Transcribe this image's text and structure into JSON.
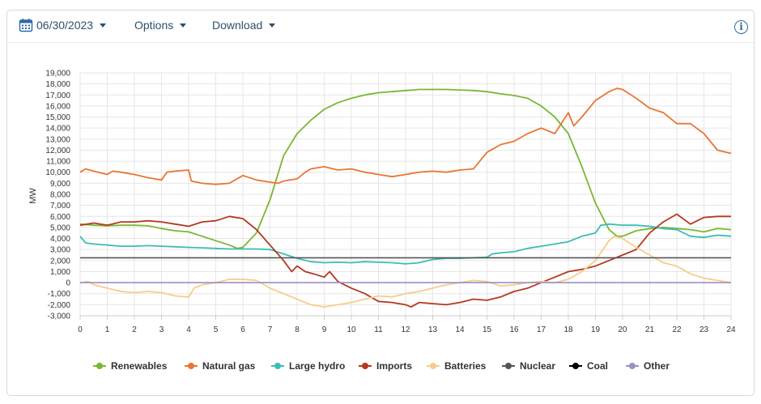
{
  "toolbar": {
    "date": "06/30/2023",
    "options_label": "Options",
    "download_label": "Download",
    "info_label": "i"
  },
  "chart_data": {
    "type": "line",
    "title": "",
    "xlabel": "",
    "ylabel": "MW",
    "xlim": [
      0,
      24
    ],
    "ylim": [
      -3000,
      19000
    ],
    "x_ticks": [
      0,
      1,
      2,
      3,
      4,
      5,
      6,
      7,
      8,
      9,
      10,
      11,
      12,
      13,
      14,
      15,
      16,
      17,
      18,
      19,
      20,
      21,
      22,
      23,
      24
    ],
    "y_ticks": [
      -3000,
      -2000,
      -1000,
      0,
      1000,
      2000,
      3000,
      4000,
      5000,
      6000,
      7000,
      8000,
      9000,
      10000,
      11000,
      12000,
      13000,
      14000,
      15000,
      16000,
      17000,
      18000,
      19000
    ],
    "y_tick_labels": [
      "-3,000",
      "-2,000",
      "-1,000",
      "0",
      "1,000",
      "2,000",
      "3,000",
      "4,000",
      "5,000",
      "6,000",
      "7,000",
      "8,000",
      "9,000",
      "10,000",
      "11,000",
      "12,000",
      "13,000",
      "14,000",
      "15,000",
      "16,000",
      "17,000",
      "18,000",
      "19,000"
    ],
    "grid": true,
    "legend_position": "bottom",
    "series": [
      {
        "name": "Renewables",
        "color": "#7ab733",
        "x": [
          0,
          0.5,
          1,
          1.5,
          2,
          2.5,
          3,
          3.5,
          4,
          4.5,
          5,
          5.5,
          5.8,
          6,
          6.5,
          7,
          7.5,
          8,
          8.5,
          9,
          9.5,
          10,
          10.5,
          11,
          11.5,
          12,
          12.5,
          13,
          13.5,
          14,
          14.5,
          15,
          15.5,
          16,
          16.5,
          17,
          17.5,
          18,
          18.5,
          19,
          19.5,
          19.8,
          20,
          20.5,
          21,
          21.5,
          22,
          22.5,
          23,
          23.5,
          24
        ],
        "values": [
          5300,
          5200,
          5150,
          5200,
          5200,
          5150,
          4900,
          4700,
          4600,
          4200,
          3800,
          3400,
          3100,
          3200,
          4500,
          7500,
          11500,
          13500,
          14700,
          15700,
          16300,
          16700,
          17000,
          17200,
          17300,
          17400,
          17500,
          17500,
          17500,
          17450,
          17400,
          17300,
          17100,
          16950,
          16700,
          16000,
          15000,
          13500,
          10500,
          7200,
          4800,
          4200,
          4200,
          4700,
          4900,
          5000,
          4900,
          4800,
          4600,
          4900,
          4800
        ]
      },
      {
        "name": "Natural gas",
        "color": "#e87632",
        "x": [
          0,
          0.2,
          0.5,
          1,
          1.2,
          1.5,
          2,
          2.5,
          3,
          3.2,
          3.5,
          4,
          4.1,
          4.5,
          5,
          5.5,
          6,
          6.5,
          7,
          7.3,
          7.5,
          8,
          8.3,
          8.5,
          9,
          9.5,
          10,
          10.5,
          11,
          11.5,
          12,
          12.5,
          13,
          13.5,
          14,
          14.5,
          15,
          15.5,
          16,
          16.5,
          17,
          17.5,
          18,
          18.2,
          18.5,
          19,
          19.5,
          19.8,
          20,
          20.5,
          21,
          21.5,
          22,
          22.5,
          23,
          23.5,
          24
        ],
        "values": [
          10000,
          10300,
          10100,
          9800,
          10100,
          10000,
          9800,
          9500,
          9300,
          10000,
          10100,
          10200,
          9200,
          9000,
          8900,
          9000,
          9700,
          9300,
          9100,
          9000,
          9200,
          9400,
          10000,
          10300,
          10500,
          10200,
          10300,
          10000,
          9800,
          9600,
          9800,
          10000,
          10100,
          10000,
          10200,
          10300,
          11800,
          12500,
          12800,
          13500,
          14000,
          13500,
          15400,
          14200,
          15000,
          16500,
          17300,
          17600,
          17500,
          16700,
          15800,
          15400,
          14400,
          14400,
          13500,
          12000,
          11700
        ]
      },
      {
        "name": "Large hydro",
        "color": "#3dbcb5",
        "x": [
          0,
          0.2,
          0.5,
          1,
          1.5,
          2,
          2.5,
          3,
          3.5,
          4,
          4.5,
          5,
          5.5,
          6,
          6.5,
          7,
          7.5,
          8,
          8.5,
          9,
          9.5,
          10,
          10.5,
          11,
          11.5,
          12,
          12.5,
          13,
          13.5,
          14,
          14.5,
          15,
          15.2,
          15.5,
          16,
          16.5,
          17,
          17.5,
          18,
          18.5,
          19,
          19.2,
          19.5,
          20,
          20.5,
          21,
          21.5,
          22,
          22.5,
          23,
          23.5,
          24
        ],
        "values": [
          4200,
          3600,
          3500,
          3400,
          3300,
          3300,
          3350,
          3300,
          3250,
          3200,
          3150,
          3100,
          3050,
          3050,
          3050,
          3000,
          2600,
          2200,
          1900,
          1800,
          1850,
          1800,
          1900,
          1850,
          1800,
          1700,
          1800,
          2100,
          2200,
          2200,
          2250,
          2300,
          2600,
          2700,
          2800,
          3100,
          3300,
          3500,
          3700,
          4200,
          4500,
          5200,
          5300,
          5200,
          5200,
          5100,
          4900,
          4800,
          4200,
          4100,
          4300,
          4200
        ]
      },
      {
        "name": "Imports",
        "color": "#b5381f",
        "x": [
          0,
          0.5,
          1,
          1.5,
          2,
          2.5,
          3,
          3.5,
          4,
          4.5,
          5,
          5.5,
          6,
          6.5,
          7,
          7.5,
          7.8,
          8,
          8.3,
          8.6,
          9,
          9.2,
          9.5,
          10,
          10.5,
          11,
          11.5,
          12,
          12.2,
          12.5,
          13,
          13.5,
          14,
          14.5,
          15,
          15.5,
          16,
          16.5,
          17,
          17.5,
          18,
          18.5,
          19,
          19.5,
          20,
          20.5,
          21,
          21.5,
          22,
          22.5,
          23,
          23.5,
          24
        ],
        "values": [
          5200,
          5400,
          5200,
          5500,
          5500,
          5600,
          5500,
          5300,
          5100,
          5500,
          5600,
          6000,
          5800,
          4800,
          3400,
          2000,
          1000,
          1500,
          1000,
          800,
          500,
          1000,
          100,
          -500,
          -1000,
          -1700,
          -1800,
          -2000,
          -2200,
          -1800,
          -1900,
          -2000,
          -1800,
          -1500,
          -1600,
          -1300,
          -800,
          -500,
          0,
          500,
          1000,
          1200,
          1500,
          2000,
          2500,
          3000,
          4500,
          5500,
          6200,
          5300,
          5900,
          6000,
          6000
        ]
      },
      {
        "name": "Batteries",
        "color": "#f6cd89",
        "x": [
          0,
          0.3,
          0.5,
          1,
          1.5,
          2,
          2.5,
          3,
          3.5,
          4,
          4.2,
          4.5,
          5,
          5.5,
          6,
          6.5,
          7,
          7.5,
          8,
          8.5,
          9,
          9.5,
          10,
          10.5,
          11,
          11.5,
          12,
          12.5,
          13,
          13.5,
          14,
          14.5,
          15,
          15.5,
          16,
          16.5,
          17,
          17.5,
          18,
          18.5,
          19,
          19.5,
          19.7,
          20,
          20.5,
          21,
          21.5,
          22,
          22.5,
          23,
          23.5,
          24
        ],
        "values": [
          0,
          100,
          -200,
          -500,
          -800,
          -900,
          -800,
          -900,
          -1200,
          -1300,
          -500,
          -200,
          0,
          300,
          300,
          200,
          -500,
          -1000,
          -1500,
          -2000,
          -2200,
          -2000,
          -1800,
          -1500,
          -1200,
          -1300,
          -1000,
          -800,
          -500,
          -200,
          0,
          200,
          100,
          -300,
          -200,
          0,
          100,
          0,
          300,
          1000,
          2000,
          3800,
          4200,
          4000,
          3200,
          2500,
          1800,
          1500,
          800,
          400,
          200,
          0
        ]
      },
      {
        "name": "Nuclear",
        "color": "#555555",
        "x": [
          0,
          24
        ],
        "values": [
          2250,
          2250
        ]
      },
      {
        "name": "Coal",
        "color": "#000000",
        "x": [],
        "values": []
      },
      {
        "name": "Other",
        "color": "#9b8fc7",
        "x": [
          0,
          24
        ],
        "values": [
          0,
          0
        ]
      }
    ]
  }
}
